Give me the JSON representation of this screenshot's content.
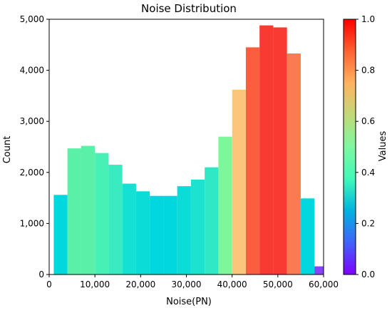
{
  "chart_data": {
    "type": "bar",
    "title": "Noise Distribution",
    "xlabel": "Noise(PN)",
    "ylabel": "Count",
    "xlim": [
      0,
      60000
    ],
    "ylim": [
      0,
      5000
    ],
    "x_ticks": [
      0,
      10000,
      20000,
      30000,
      40000,
      50000,
      60000
    ],
    "x_tick_labels": [
      "0",
      "10,000",
      "20,000",
      "30,000",
      "40,000",
      "50,000",
      "60,000"
    ],
    "y_ticks": [
      0,
      1000,
      2000,
      3000,
      4000,
      5000
    ],
    "y_tick_labels": [
      "0",
      "1,000",
      "2,000",
      "3,000",
      "4,000",
      "5,000"
    ],
    "bins": [
      {
        "x0": 1000,
        "x1": 4000,
        "value": 1560,
        "color": "#00d7de"
      },
      {
        "x0": 4000,
        "x1": 7000,
        "value": 2470,
        "color": "#5af0a8"
      },
      {
        "x0": 7000,
        "x1": 10000,
        "value": 2520,
        "color": "#5af0a8"
      },
      {
        "x0": 10000,
        "x1": 13000,
        "value": 2380,
        "color": "#47f0b4"
      },
      {
        "x0": 13000,
        "x1": 16000,
        "value": 2150,
        "color": "#3aeac0"
      },
      {
        "x0": 16000,
        "x1": 19000,
        "value": 1780,
        "color": "#15e0d4"
      },
      {
        "x0": 19000,
        "x1": 22000,
        "value": 1630,
        "color": "#0bdcd8"
      },
      {
        "x0": 22000,
        "x1": 25000,
        "value": 1540,
        "color": "#00d7de"
      },
      {
        "x0": 25000,
        "x1": 28000,
        "value": 1540,
        "color": "#00d7de"
      },
      {
        "x0": 28000,
        "x1": 31000,
        "value": 1730,
        "color": "#0bdcd8"
      },
      {
        "x0": 31000,
        "x1": 34000,
        "value": 1860,
        "color": "#1ee2d0"
      },
      {
        "x0": 34000,
        "x1": 37000,
        "value": 2100,
        "color": "#31e8c6"
      },
      {
        "x0": 37000,
        "x1": 40000,
        "value": 2700,
        "color": "#7ef79a"
      },
      {
        "x0": 40000,
        "x1": 43000,
        "value": 3620,
        "color": "#fbc67c"
      },
      {
        "x0": 43000,
        "x1": 46000,
        "value": 4450,
        "color": "#f95f3f"
      },
      {
        "x0": 46000,
        "x1": 49000,
        "value": 4880,
        "color": "#f83a32"
      },
      {
        "x0": 49000,
        "x1": 52000,
        "value": 4840,
        "color": "#f83a32"
      },
      {
        "x0": 52000,
        "x1": 55000,
        "value": 4330,
        "color": "#fa7a52"
      },
      {
        "x0": 55000,
        "x1": 58000,
        "value": 1490,
        "color": "#00d7de"
      },
      {
        "x0": 58000,
        "x1": 61000,
        "value": 160,
        "color": "#8a44f8"
      }
    ],
    "colorbar": {
      "label": "Values",
      "range": [
        0,
        1
      ],
      "ticks": [
        0.0,
        0.2,
        0.4,
        0.6,
        0.8,
        1.0
      ],
      "tick_labels": [
        "0.0",
        "0.2",
        "0.4",
        "0.6",
        "0.8",
        "1.0"
      ],
      "colormap": "rainbow",
      "stops": [
        "#8000ff",
        "#4062fa",
        "#01b3de",
        "#41f9b9",
        "#7ff7a0",
        "#c1d97a",
        "#ffb360",
        "#ff6231",
        "#ff0000"
      ]
    },
    "grid": false,
    "legend": "none"
  }
}
